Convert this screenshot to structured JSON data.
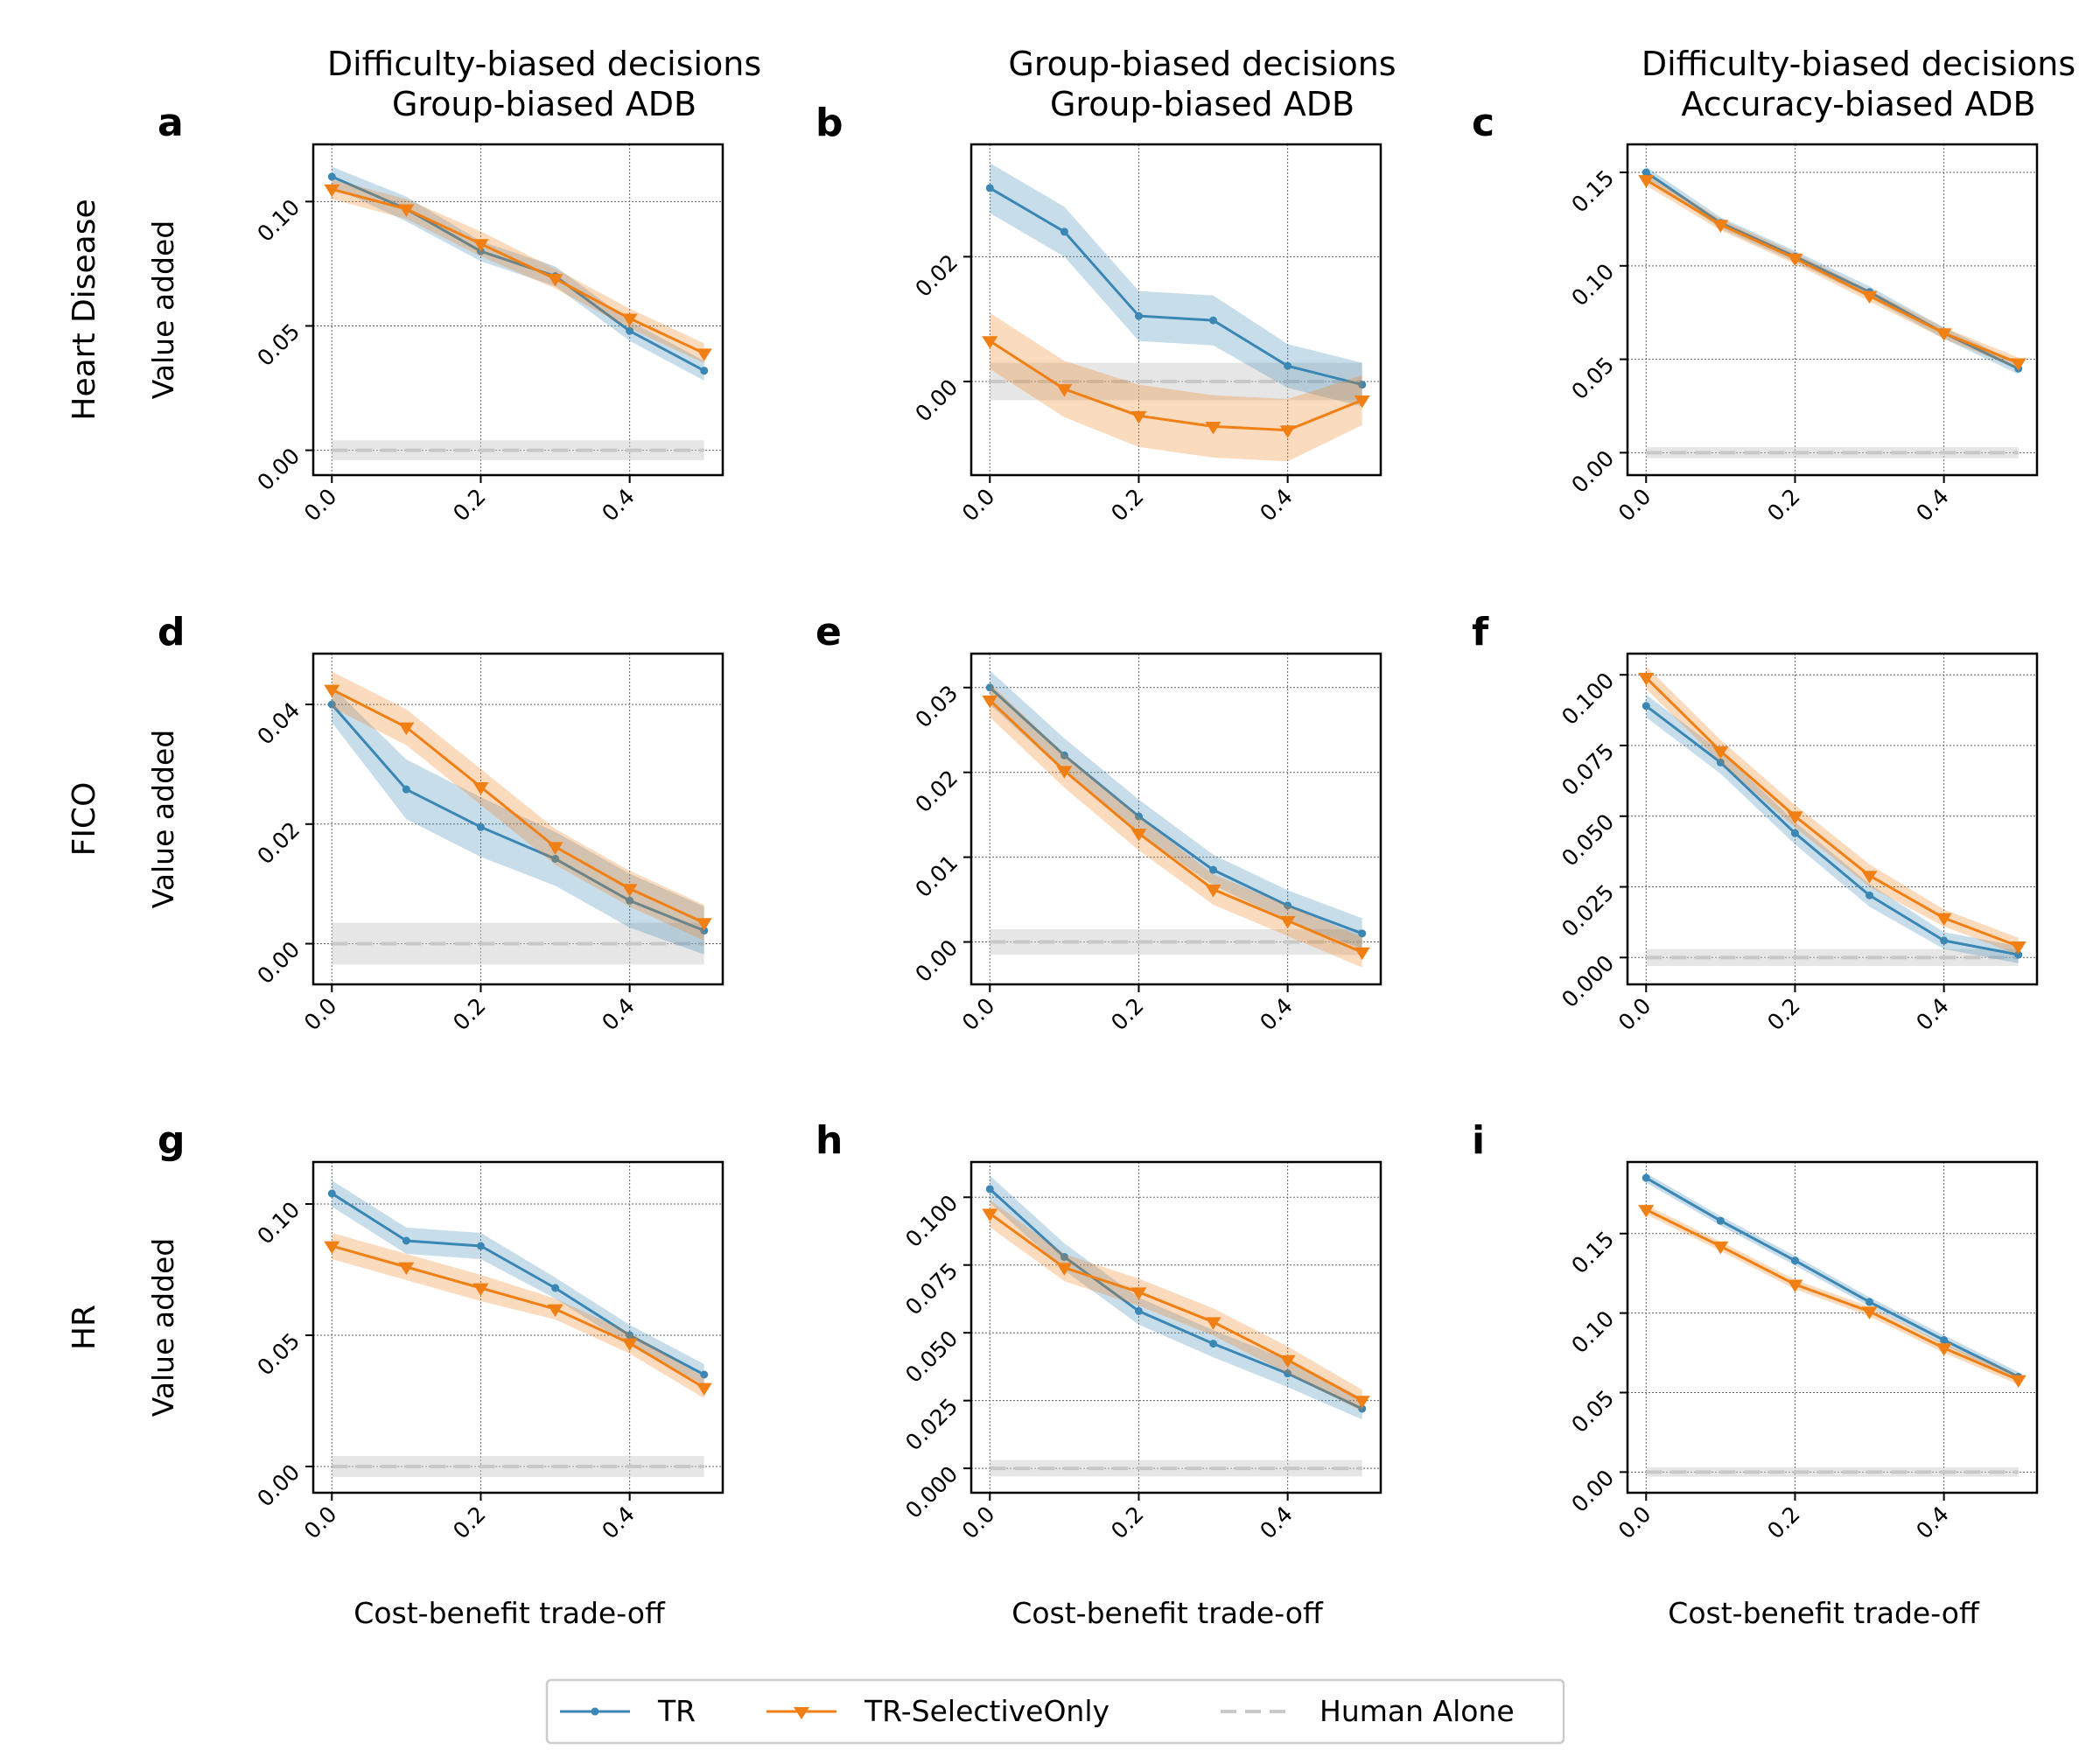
{
  "figure": {
    "column_titles": [
      [
        "Difficulty-biased decisions",
        "Group-biased ADB"
      ],
      [
        "Group-biased decisions",
        "Group-biased ADB"
      ],
      [
        "Difficulty-biased decisions",
        "Accuracy-biased ADB"
      ]
    ],
    "row_labels": [
      "Heart Disease",
      "FICO",
      "HR"
    ],
    "ylabel": "Value added",
    "xlabel": "Cost-benefit trade-off",
    "colors": {
      "tr": "#3a86b5",
      "tr_selective": "#f07f14",
      "human": "#c8c8c8",
      "grid": "#666666"
    },
    "legend": [
      {
        "key": "tr",
        "label": "TR"
      },
      {
        "key": "tr_selective",
        "label": "TR-SelectiveOnly"
      },
      {
        "key": "human",
        "label": "Human Alone"
      }
    ]
  },
  "chart_data": [
    {
      "panel": "a",
      "type": "line",
      "x": [
        0.0,
        0.1,
        0.2,
        0.3,
        0.4,
        0.5
      ],
      "xticks": [
        0.0,
        0.2,
        0.4
      ],
      "xticklabels": [
        "0.0",
        "0.2",
        "0.4"
      ],
      "ylim": [
        -0.01,
        0.123
      ],
      "yticks": [
        0.0,
        0.05,
        0.1
      ],
      "yticklabels": [
        "0.00",
        "0.05",
        "0.10"
      ],
      "series": [
        {
          "name": "TR",
          "values": [
            0.11,
            0.097,
            0.08,
            0.07,
            0.048,
            0.032
          ],
          "band": [
            0.004,
            0.005,
            0.004,
            0.004,
            0.004,
            0.004
          ]
        },
        {
          "name": "TR-SelectiveOnly",
          "values": [
            0.105,
            0.097,
            0.083,
            0.069,
            0.053,
            0.039
          ],
          "band": [
            0.004,
            0.004,
            0.005,
            0.004,
            0.004,
            0.004
          ]
        },
        {
          "name": "Human Alone",
          "values": [
            0,
            0,
            0,
            0,
            0,
            0
          ],
          "band": [
            0.004,
            0.004,
            0.004,
            0.004,
            0.004,
            0.004
          ]
        }
      ]
    },
    {
      "panel": "b",
      "type": "line",
      "x": [
        0.0,
        0.1,
        0.2,
        0.3,
        0.4,
        0.5
      ],
      "xticks": [
        0.0,
        0.2,
        0.4
      ],
      "xticklabels": [
        "0.0",
        "0.2",
        "0.4"
      ],
      "ylim": [
        -0.015,
        0.038
      ],
      "yticks": [
        0.0,
        0.02
      ],
      "yticklabels": [
        "0.00",
        "0.02"
      ],
      "series": [
        {
          "name": "TR",
          "values": [
            0.031,
            0.024,
            0.0105,
            0.0098,
            0.0025,
            -0.0005
          ],
          "band": [
            0.004,
            0.004,
            0.004,
            0.004,
            0.0035,
            0.0035
          ]
        },
        {
          "name": "TR-SelectiveOnly",
          "values": [
            0.0065,
            -0.0012,
            -0.0055,
            -0.0072,
            -0.0078,
            -0.003
          ],
          "band": [
            0.0045,
            0.0045,
            0.005,
            0.005,
            0.005,
            0.004
          ]
        },
        {
          "name": "Human Alone",
          "values": [
            0,
            0,
            0,
            0,
            0,
            0
          ],
          "band": [
            0.003,
            0.003,
            0.003,
            0.003,
            0.003,
            0.003
          ]
        }
      ]
    },
    {
      "panel": "c",
      "type": "line",
      "x": [
        0.0,
        0.1,
        0.2,
        0.3,
        0.4,
        0.5
      ],
      "xticks": [
        0.0,
        0.2,
        0.4
      ],
      "xticklabels": [
        "0.0",
        "0.2",
        "0.4"
      ],
      "ylim": [
        -0.012,
        0.165
      ],
      "yticks": [
        0.0,
        0.05,
        0.1,
        0.15
      ],
      "yticklabels": [
        "0.00",
        "0.05",
        "0.10",
        "0.15"
      ],
      "series": [
        {
          "name": "TR",
          "values": [
            0.15,
            0.123,
            0.105,
            0.086,
            0.064,
            0.045
          ],
          "band": [
            0.003,
            0.003,
            0.003,
            0.003,
            0.003,
            0.003
          ]
        },
        {
          "name": "TR-SelectiveOnly",
          "values": [
            0.146,
            0.122,
            0.104,
            0.084,
            0.064,
            0.048
          ],
          "band": [
            0.003,
            0.003,
            0.003,
            0.003,
            0.003,
            0.003
          ]
        },
        {
          "name": "Human Alone",
          "values": [
            0,
            0,
            0,
            0,
            0,
            0
          ],
          "band": [
            0.003,
            0.003,
            0.003,
            0.003,
            0.003,
            0.003
          ]
        }
      ]
    },
    {
      "panel": "d",
      "type": "line",
      "x": [
        0.0,
        0.1,
        0.2,
        0.3,
        0.4,
        0.5
      ],
      "xticks": [
        0.0,
        0.2,
        0.4
      ],
      "xticklabels": [
        "0.0",
        "0.2",
        "0.4"
      ],
      "ylim": [
        -0.0068,
        0.0485
      ],
      "yticks": [
        0.0,
        0.02,
        0.04
      ],
      "yticklabels": [
        "0.00",
        "0.02",
        "0.04"
      ],
      "series": [
        {
          "name": "TR",
          "values": [
            0.04,
            0.0258,
            0.0195,
            0.0142,
            0.0072,
            0.0022
          ],
          "band": [
            0.003,
            0.005,
            0.005,
            0.0045,
            0.0045,
            0.004
          ]
        },
        {
          "name": "TR-SelectiveOnly",
          "values": [
            0.0425,
            0.0362,
            0.0262,
            0.0162,
            0.0092,
            0.0035
          ],
          "band": [
            0.003,
            0.003,
            0.003,
            0.003,
            0.003,
            0.003
          ]
        },
        {
          "name": "Human Alone",
          "values": [
            0,
            0,
            0,
            0,
            0,
            0
          ],
          "band": [
            0.0035,
            0.0035,
            0.0035,
            0.0035,
            0.0035,
            0.0035
          ]
        }
      ]
    },
    {
      "panel": "e",
      "type": "line",
      "x": [
        0.0,
        0.1,
        0.2,
        0.3,
        0.4,
        0.5
      ],
      "xticks": [
        0.0,
        0.2,
        0.4
      ],
      "xticklabels": [
        "0.0",
        "0.2",
        "0.4"
      ],
      "ylim": [
        -0.005,
        0.034
      ],
      "yticks": [
        0.0,
        0.01,
        0.02,
        0.03
      ],
      "yticklabels": [
        "0.00",
        "0.01",
        "0.02",
        "0.03"
      ],
      "series": [
        {
          "name": "TR",
          "values": [
            0.03,
            0.022,
            0.0148,
            0.0085,
            0.0043,
            0.001
          ],
          "band": [
            0.002,
            0.002,
            0.002,
            0.0018,
            0.0018,
            0.0018
          ]
        },
        {
          "name": "TR-SelectiveOnly",
          "values": [
            0.0285,
            0.0202,
            0.0128,
            0.0062,
            0.0025,
            -0.0012
          ],
          "band": [
            0.002,
            0.002,
            0.002,
            0.0018,
            0.0018,
            0.0018
          ]
        },
        {
          "name": "Human Alone",
          "values": [
            0,
            0,
            0,
            0,
            0,
            0
          ],
          "band": [
            0.0015,
            0.0015,
            0.0015,
            0.0015,
            0.0015,
            0.0015
          ]
        }
      ]
    },
    {
      "panel": "f",
      "type": "line",
      "x": [
        0.0,
        0.1,
        0.2,
        0.3,
        0.4,
        0.5
      ],
      "xticks": [
        0.0,
        0.2,
        0.4
      ],
      "xticklabels": [
        "0.0",
        "0.2",
        "0.4"
      ],
      "ylim": [
        -0.0095,
        0.1075
      ],
      "yticks": [
        0.0,
        0.025,
        0.05,
        0.075,
        0.1
      ],
      "yticklabels": [
        "0.000",
        "0.025",
        "0.050",
        "0.075",
        "0.100"
      ],
      "series": [
        {
          "name": "TR",
          "values": [
            0.089,
            0.069,
            0.044,
            0.022,
            0.006,
            0.001
          ],
          "band": [
            0.004,
            0.004,
            0.004,
            0.004,
            0.003,
            0.003
          ]
        },
        {
          "name": "TR-SelectiveOnly",
          "values": [
            0.099,
            0.073,
            0.05,
            0.029,
            0.014,
            0.004
          ],
          "band": [
            0.004,
            0.004,
            0.004,
            0.004,
            0.003,
            0.003
          ]
        },
        {
          "name": "Human Alone",
          "values": [
            0,
            0,
            0,
            0,
            0,
            0
          ],
          "band": [
            0.003,
            0.003,
            0.003,
            0.003,
            0.003,
            0.003
          ]
        }
      ]
    },
    {
      "panel": "g",
      "type": "line",
      "x": [
        0.0,
        0.1,
        0.2,
        0.3,
        0.4,
        0.5
      ],
      "xticks": [
        0.0,
        0.2,
        0.4
      ],
      "xticklabels": [
        "0.0",
        "0.2",
        "0.4"
      ],
      "ylim": [
        -0.01,
        0.116
      ],
      "yticks": [
        0.0,
        0.05,
        0.1
      ],
      "yticklabels": [
        "0.00",
        "0.05",
        "0.10"
      ],
      "series": [
        {
          "name": "TR",
          "values": [
            0.104,
            0.086,
            0.084,
            0.068,
            0.05,
            0.035
          ],
          "band": [
            0.005,
            0.005,
            0.005,
            0.004,
            0.004,
            0.004
          ]
        },
        {
          "name": "TR-SelectiveOnly",
          "values": [
            0.084,
            0.076,
            0.068,
            0.06,
            0.047,
            0.03
          ],
          "band": [
            0.005,
            0.005,
            0.005,
            0.004,
            0.004,
            0.004
          ]
        },
        {
          "name": "Human Alone",
          "values": [
            0,
            0,
            0,
            0,
            0,
            0
          ],
          "band": [
            0.004,
            0.004,
            0.004,
            0.004,
            0.004,
            0.004
          ]
        }
      ]
    },
    {
      "panel": "h",
      "type": "line",
      "x": [
        0.0,
        0.1,
        0.2,
        0.3,
        0.4,
        0.5
      ],
      "xticks": [
        0.0,
        0.2,
        0.4
      ],
      "xticklabels": [
        "0.0",
        "0.2",
        "0.4"
      ],
      "ylim": [
        -0.009,
        0.113
      ],
      "yticks": [
        0.0,
        0.025,
        0.05,
        0.075,
        0.1
      ],
      "yticklabels": [
        "0.000",
        "0.025",
        "0.050",
        "0.075",
        "0.100"
      ],
      "series": [
        {
          "name": "TR",
          "values": [
            0.103,
            0.078,
            0.058,
            0.046,
            0.035,
            0.022
          ],
          "band": [
            0.005,
            0.005,
            0.005,
            0.005,
            0.005,
            0.004
          ]
        },
        {
          "name": "TR-SelectiveOnly",
          "values": [
            0.094,
            0.074,
            0.065,
            0.054,
            0.04,
            0.025
          ],
          "band": [
            0.005,
            0.005,
            0.005,
            0.005,
            0.005,
            0.004
          ]
        },
        {
          "name": "Human Alone",
          "values": [
            0,
            0,
            0,
            0,
            0,
            0
          ],
          "band": [
            0.003,
            0.003,
            0.003,
            0.003,
            0.003,
            0.003
          ]
        }
      ]
    },
    {
      "panel": "i",
      "type": "line",
      "x": [
        0.0,
        0.1,
        0.2,
        0.3,
        0.4,
        0.5
      ],
      "xticks": [
        0.0,
        0.2,
        0.4
      ],
      "xticklabels": [
        "0.0",
        "0.2",
        "0.4"
      ],
      "ylim": [
        -0.013,
        0.195
      ],
      "yticks": [
        0.0,
        0.05,
        0.1,
        0.15
      ],
      "yticklabels": [
        "0.00",
        "0.05",
        "0.10",
        "0.15"
      ],
      "series": [
        {
          "name": "TR",
          "values": [
            0.185,
            0.158,
            0.133,
            0.107,
            0.083,
            0.06
          ],
          "band": [
            0.003,
            0.003,
            0.003,
            0.003,
            0.003,
            0.003
          ]
        },
        {
          "name": "TR-SelectiveOnly",
          "values": [
            0.165,
            0.142,
            0.118,
            0.101,
            0.078,
            0.058
          ],
          "band": [
            0.003,
            0.003,
            0.003,
            0.003,
            0.003,
            0.003
          ]
        },
        {
          "name": "Human Alone",
          "values": [
            0,
            0,
            0,
            0,
            0,
            0
          ],
          "band": [
            0.003,
            0.003,
            0.003,
            0.003,
            0.003,
            0.003
          ]
        }
      ]
    }
  ]
}
